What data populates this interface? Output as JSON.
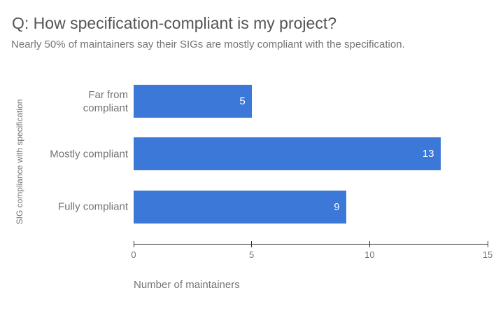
{
  "chart_data": {
    "type": "bar",
    "orientation": "horizontal",
    "title": "Q: How specification-compliant is my project?",
    "subtitle": "Nearly 50% of maintainers say their SIGs are mostly compliant with the specification.",
    "categories": [
      "Far from compliant",
      "Mostly compliant",
      "Fully compliant"
    ],
    "values": [
      5,
      13,
      9
    ],
    "xlabel": "Number of maintainers",
    "ylabel": "SIG compliance with specification",
    "xlim": [
      0,
      15
    ],
    "xticks": [
      0,
      5,
      10,
      15
    ],
    "legend_position": "none",
    "grid": false,
    "bar_color": "#3c78d8",
    "value_label_color": "#ffffff",
    "title_color": "#555555",
    "subtitle_color": "#757575",
    "axis_text_color": "#757575",
    "axis_line_color": "#333333"
  }
}
